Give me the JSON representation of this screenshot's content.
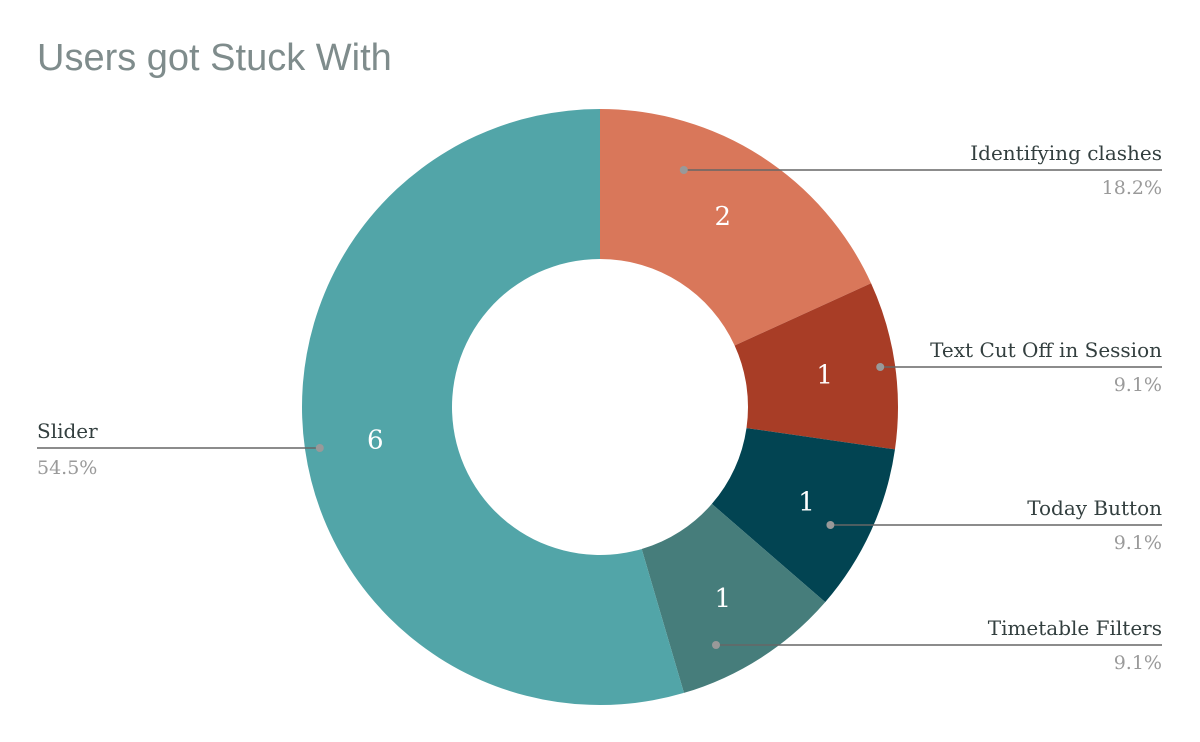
{
  "chart_data": {
    "type": "pie",
    "title": "Users got Stuck With",
    "donut": true,
    "slices": [
      {
        "label": "Identifying clashes",
        "value": 2,
        "value_label": "2",
        "percent": "18.2%",
        "color": "#d9775a"
      },
      {
        "label": "Text Cut Off in Session",
        "value": 1,
        "value_label": "1",
        "percent": "9.1%",
        "color": "#a83d26"
      },
      {
        "label": "Today Button",
        "value": 1,
        "value_label": "1",
        "percent": "9.1%",
        "color": "#024452"
      },
      {
        "label": "Timetable Filters",
        "value": 1,
        "value_label": "1",
        "percent": "9.1%",
        "color": "#467d7b"
      },
      {
        "label": "Slider",
        "value": 6,
        "value_label": "6",
        "percent": "54.5%",
        "color": "#52a5a8"
      }
    ]
  }
}
